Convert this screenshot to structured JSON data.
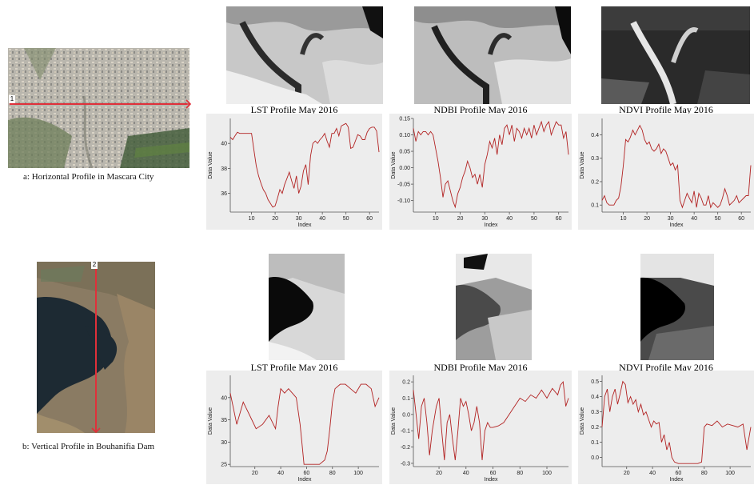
{
  "captions": {
    "a": "a: Horizontal Profile in Mascara City",
    "b": "b: Vertical Profile in Bouhanifia Dam"
  },
  "markers": {
    "a": "1",
    "b": "2"
  },
  "colors": {
    "line": "#b22222",
    "plot_bg": "#ededed",
    "profile_line": "#e0303a"
  },
  "chart_data": [
    {
      "type": "line",
      "title": "LST Profile May 2016",
      "xlabel": "Index",
      "ylabel": "Data Value",
      "xlim": [
        1,
        64
      ],
      "ylim": [
        34.5,
        42
      ],
      "xticks": [
        10,
        20,
        30,
        40,
        50,
        60
      ],
      "yticks": [
        36,
        38,
        40
      ],
      "x": [
        1,
        2,
        3,
        4,
        5,
        6,
        7,
        8,
        9,
        10,
        11,
        12,
        13,
        14,
        15,
        16,
        17,
        18,
        19,
        20,
        21,
        22,
        23,
        24,
        25,
        26,
        27,
        28,
        29,
        30,
        31,
        32,
        33,
        34,
        35,
        36,
        37,
        38,
        39,
        40,
        41,
        42,
        43,
        44,
        45,
        46,
        47,
        48,
        49,
        50,
        51,
        52,
        53,
        54,
        55,
        56,
        57,
        58,
        59,
        60,
        61,
        62,
        63,
        64
      ],
      "y": [
        40.5,
        40.3,
        40.6,
        40.9,
        40.8,
        40.8,
        40.8,
        40.8,
        40.8,
        40.8,
        39.5,
        38.2,
        37.4,
        36.8,
        36.3,
        36.0,
        35.5,
        35.2,
        34.9,
        35.0,
        35.6,
        36.3,
        36.0,
        36.7,
        37.2,
        37.7,
        37.0,
        36.4,
        37.4,
        36.0,
        36.6,
        37.8,
        38.3,
        36.7,
        39.0,
        40.0,
        40.2,
        40.0,
        40.3,
        40.5,
        40.8,
        40.2,
        39.7,
        40.8,
        40.8,
        41.2,
        40.6,
        41.4,
        41.5,
        41.6,
        41.3,
        39.6,
        39.7,
        40.2,
        40.7,
        40.6,
        40.3,
        40.3,
        40.9,
        41.2,
        41.3,
        41.3,
        41.0,
        39.3
      ]
    },
    {
      "type": "line",
      "title": "NDBI Profile May 2016",
      "xlabel": "Index",
      "ylabel": "Data Value",
      "xlim": [
        1,
        64
      ],
      "ylim": [
        -0.135,
        0.15
      ],
      "xticks": [
        10,
        20,
        30,
        40,
        50,
        60
      ],
      "yticks": [
        -0.1,
        -0.05,
        0.0,
        0.05,
        0.1,
        0.15
      ],
      "x": [
        1,
        2,
        3,
        4,
        5,
        6,
        7,
        8,
        9,
        10,
        11,
        12,
        13,
        14,
        15,
        16,
        17,
        18,
        19,
        20,
        21,
        22,
        23,
        24,
        25,
        26,
        27,
        28,
        29,
        30,
        31,
        32,
        33,
        34,
        35,
        36,
        37,
        38,
        39,
        40,
        41,
        42,
        43,
        44,
        45,
        46,
        47,
        48,
        49,
        50,
        51,
        52,
        53,
        54,
        55,
        56,
        57,
        58,
        59,
        60,
        61,
        62,
        63,
        64
      ],
      "y": [
        0.12,
        0.08,
        0.11,
        0.1,
        0.11,
        0.11,
        0.1,
        0.11,
        0.1,
        0.06,
        0.02,
        -0.03,
        -0.09,
        -0.05,
        -0.04,
        -0.07,
        -0.1,
        -0.12,
        -0.08,
        -0.06,
        -0.03,
        -0.01,
        0.02,
        0.0,
        -0.03,
        -0.02,
        -0.05,
        -0.02,
        -0.06,
        0.01,
        0.04,
        0.08,
        0.06,
        0.09,
        0.04,
        0.1,
        0.07,
        0.12,
        0.13,
        0.1,
        0.13,
        0.08,
        0.12,
        0.11,
        0.09,
        0.12,
        0.1,
        0.12,
        0.09,
        0.13,
        0.1,
        0.12,
        0.14,
        0.11,
        0.13,
        0.14,
        0.1,
        0.12,
        0.14,
        0.13,
        0.13,
        0.09,
        0.11,
        0.04
      ]
    },
    {
      "type": "line",
      "title": "NDVI Profile May 2016",
      "xlabel": "Index",
      "ylabel": "Data Value",
      "xlim": [
        1,
        64
      ],
      "ylim": [
        0.07,
        0.47
      ],
      "xticks": [
        10,
        20,
        30,
        40,
        50,
        60
      ],
      "yticks": [
        0.1,
        0.2,
        0.3,
        0.4
      ],
      "x": [
        1,
        2,
        3,
        4,
        5,
        6,
        7,
        8,
        9,
        10,
        11,
        12,
        13,
        14,
        15,
        16,
        17,
        18,
        19,
        20,
        21,
        22,
        23,
        24,
        25,
        26,
        27,
        28,
        29,
        30,
        31,
        32,
        33,
        34,
        35,
        36,
        37,
        38,
        39,
        40,
        41,
        42,
        43,
        44,
        45,
        46,
        47,
        48,
        49,
        50,
        51,
        52,
        53,
        54,
        55,
        56,
        57,
        58,
        59,
        60,
        61,
        62,
        63,
        64
      ],
      "y": [
        0.12,
        0.14,
        0.11,
        0.1,
        0.1,
        0.1,
        0.12,
        0.13,
        0.18,
        0.27,
        0.38,
        0.37,
        0.39,
        0.42,
        0.4,
        0.42,
        0.44,
        0.42,
        0.38,
        0.36,
        0.37,
        0.34,
        0.33,
        0.34,
        0.36,
        0.32,
        0.34,
        0.33,
        0.3,
        0.27,
        0.28,
        0.25,
        0.27,
        0.12,
        0.09,
        0.12,
        0.15,
        0.13,
        0.11,
        0.16,
        0.09,
        0.15,
        0.13,
        0.1,
        0.1,
        0.14,
        0.09,
        0.11,
        0.1,
        0.09,
        0.1,
        0.13,
        0.17,
        0.14,
        0.1,
        0.11,
        0.12,
        0.14,
        0.11,
        0.12,
        0.13,
        0.14,
        0.14,
        0.27
      ]
    },
    {
      "type": "line",
      "title": "LST Profile May 2016",
      "xlabel": "Index",
      "ylabel": "Data Value",
      "xlim": [
        1,
        116
      ],
      "ylim": [
        24.5,
        45
      ],
      "xticks": [
        20,
        40,
        60,
        80,
        100
      ],
      "yticks": [
        25,
        30,
        35,
        40
      ],
      "x": [
        1,
        6,
        11,
        16,
        21,
        26,
        31,
        36,
        38,
        40,
        43,
        46,
        49,
        52,
        55,
        56,
        58,
        62,
        66,
        70,
        74,
        76,
        78,
        80,
        82,
        86,
        90,
        94,
        98,
        102,
        106,
        110,
        113,
        116
      ],
      "y": [
        41,
        34,
        39,
        36,
        33,
        34,
        36,
        33,
        38,
        42,
        41,
        42,
        41,
        40,
        34,
        31,
        25,
        25,
        25,
        25,
        26,
        28,
        33,
        39,
        42,
        43,
        43,
        42,
        41,
        43,
        43,
        42,
        38,
        40
      ]
    },
    {
      "type": "line",
      "title": "NDBI Profile May 2016",
      "xlabel": "Index",
      "ylabel": "Data Value",
      "xlim": [
        1,
        116
      ],
      "ylim": [
        -0.32,
        0.24
      ],
      "xticks": [
        20,
        40,
        60,
        80,
        100
      ],
      "yticks": [
        -0.3,
        -0.2,
        -0.1,
        0.0,
        0.1,
        0.2
      ],
      "x": [
        1,
        3,
        5,
        7,
        9,
        11,
        13,
        15,
        18,
        20,
        22,
        24,
        26,
        28,
        30,
        32,
        34,
        36,
        38,
        40,
        42,
        44,
        46,
        48,
        50,
        52,
        54,
        56,
        58,
        60,
        64,
        68,
        72,
        76,
        80,
        84,
        88,
        92,
        96,
        100,
        104,
        108,
        110,
        112,
        114,
        116
      ],
      "y": [
        0.15,
        0.0,
        -0.15,
        0.05,
        0.1,
        -0.05,
        -0.25,
        -0.1,
        0.05,
        0.1,
        -0.1,
        -0.28,
        -0.05,
        0.0,
        -0.15,
        -0.28,
        -0.1,
        0.1,
        0.05,
        0.08,
        0.0,
        -0.1,
        -0.05,
        0.05,
        -0.05,
        -0.28,
        -0.1,
        -0.05,
        -0.08,
        -0.08,
        -0.07,
        -0.05,
        0.0,
        0.05,
        0.1,
        0.08,
        0.12,
        0.1,
        0.15,
        0.1,
        0.16,
        0.12,
        0.18,
        0.2,
        0.05,
        0.1
      ]
    },
    {
      "type": "line",
      "title": "NDVI Profile May 2016",
      "xlabel": "Index",
      "ylabel": "Data Value",
      "xlim": [
        1,
        116
      ],
      "ylim": [
        -0.06,
        0.54
      ],
      "xticks": [
        20,
        40,
        60,
        80,
        100
      ],
      "yticks": [
        0.0,
        0.1,
        0.2,
        0.3,
        0.4,
        0.5
      ],
      "x": [
        1,
        3,
        5,
        7,
        9,
        11,
        13,
        15,
        17,
        19,
        21,
        23,
        25,
        27,
        29,
        31,
        33,
        35,
        37,
        39,
        41,
        43,
        45,
        47,
        49,
        51,
        53,
        55,
        57,
        60,
        65,
        70,
        75,
        78,
        80,
        82,
        86,
        90,
        94,
        98,
        102,
        106,
        110,
        113,
        116
      ],
      "y": [
        0.2,
        0.4,
        0.45,
        0.3,
        0.4,
        0.45,
        0.35,
        0.42,
        0.5,
        0.48,
        0.36,
        0.4,
        0.35,
        0.38,
        0.3,
        0.35,
        0.28,
        0.3,
        0.25,
        0.2,
        0.24,
        0.22,
        0.23,
        0.1,
        0.15,
        0.05,
        0.1,
        0.0,
        -0.03,
        -0.04,
        -0.04,
        -0.04,
        -0.04,
        -0.03,
        0.2,
        0.22,
        0.21,
        0.24,
        0.2,
        0.22,
        0.21,
        0.2,
        0.22,
        0.05,
        0.2
      ]
    }
  ]
}
